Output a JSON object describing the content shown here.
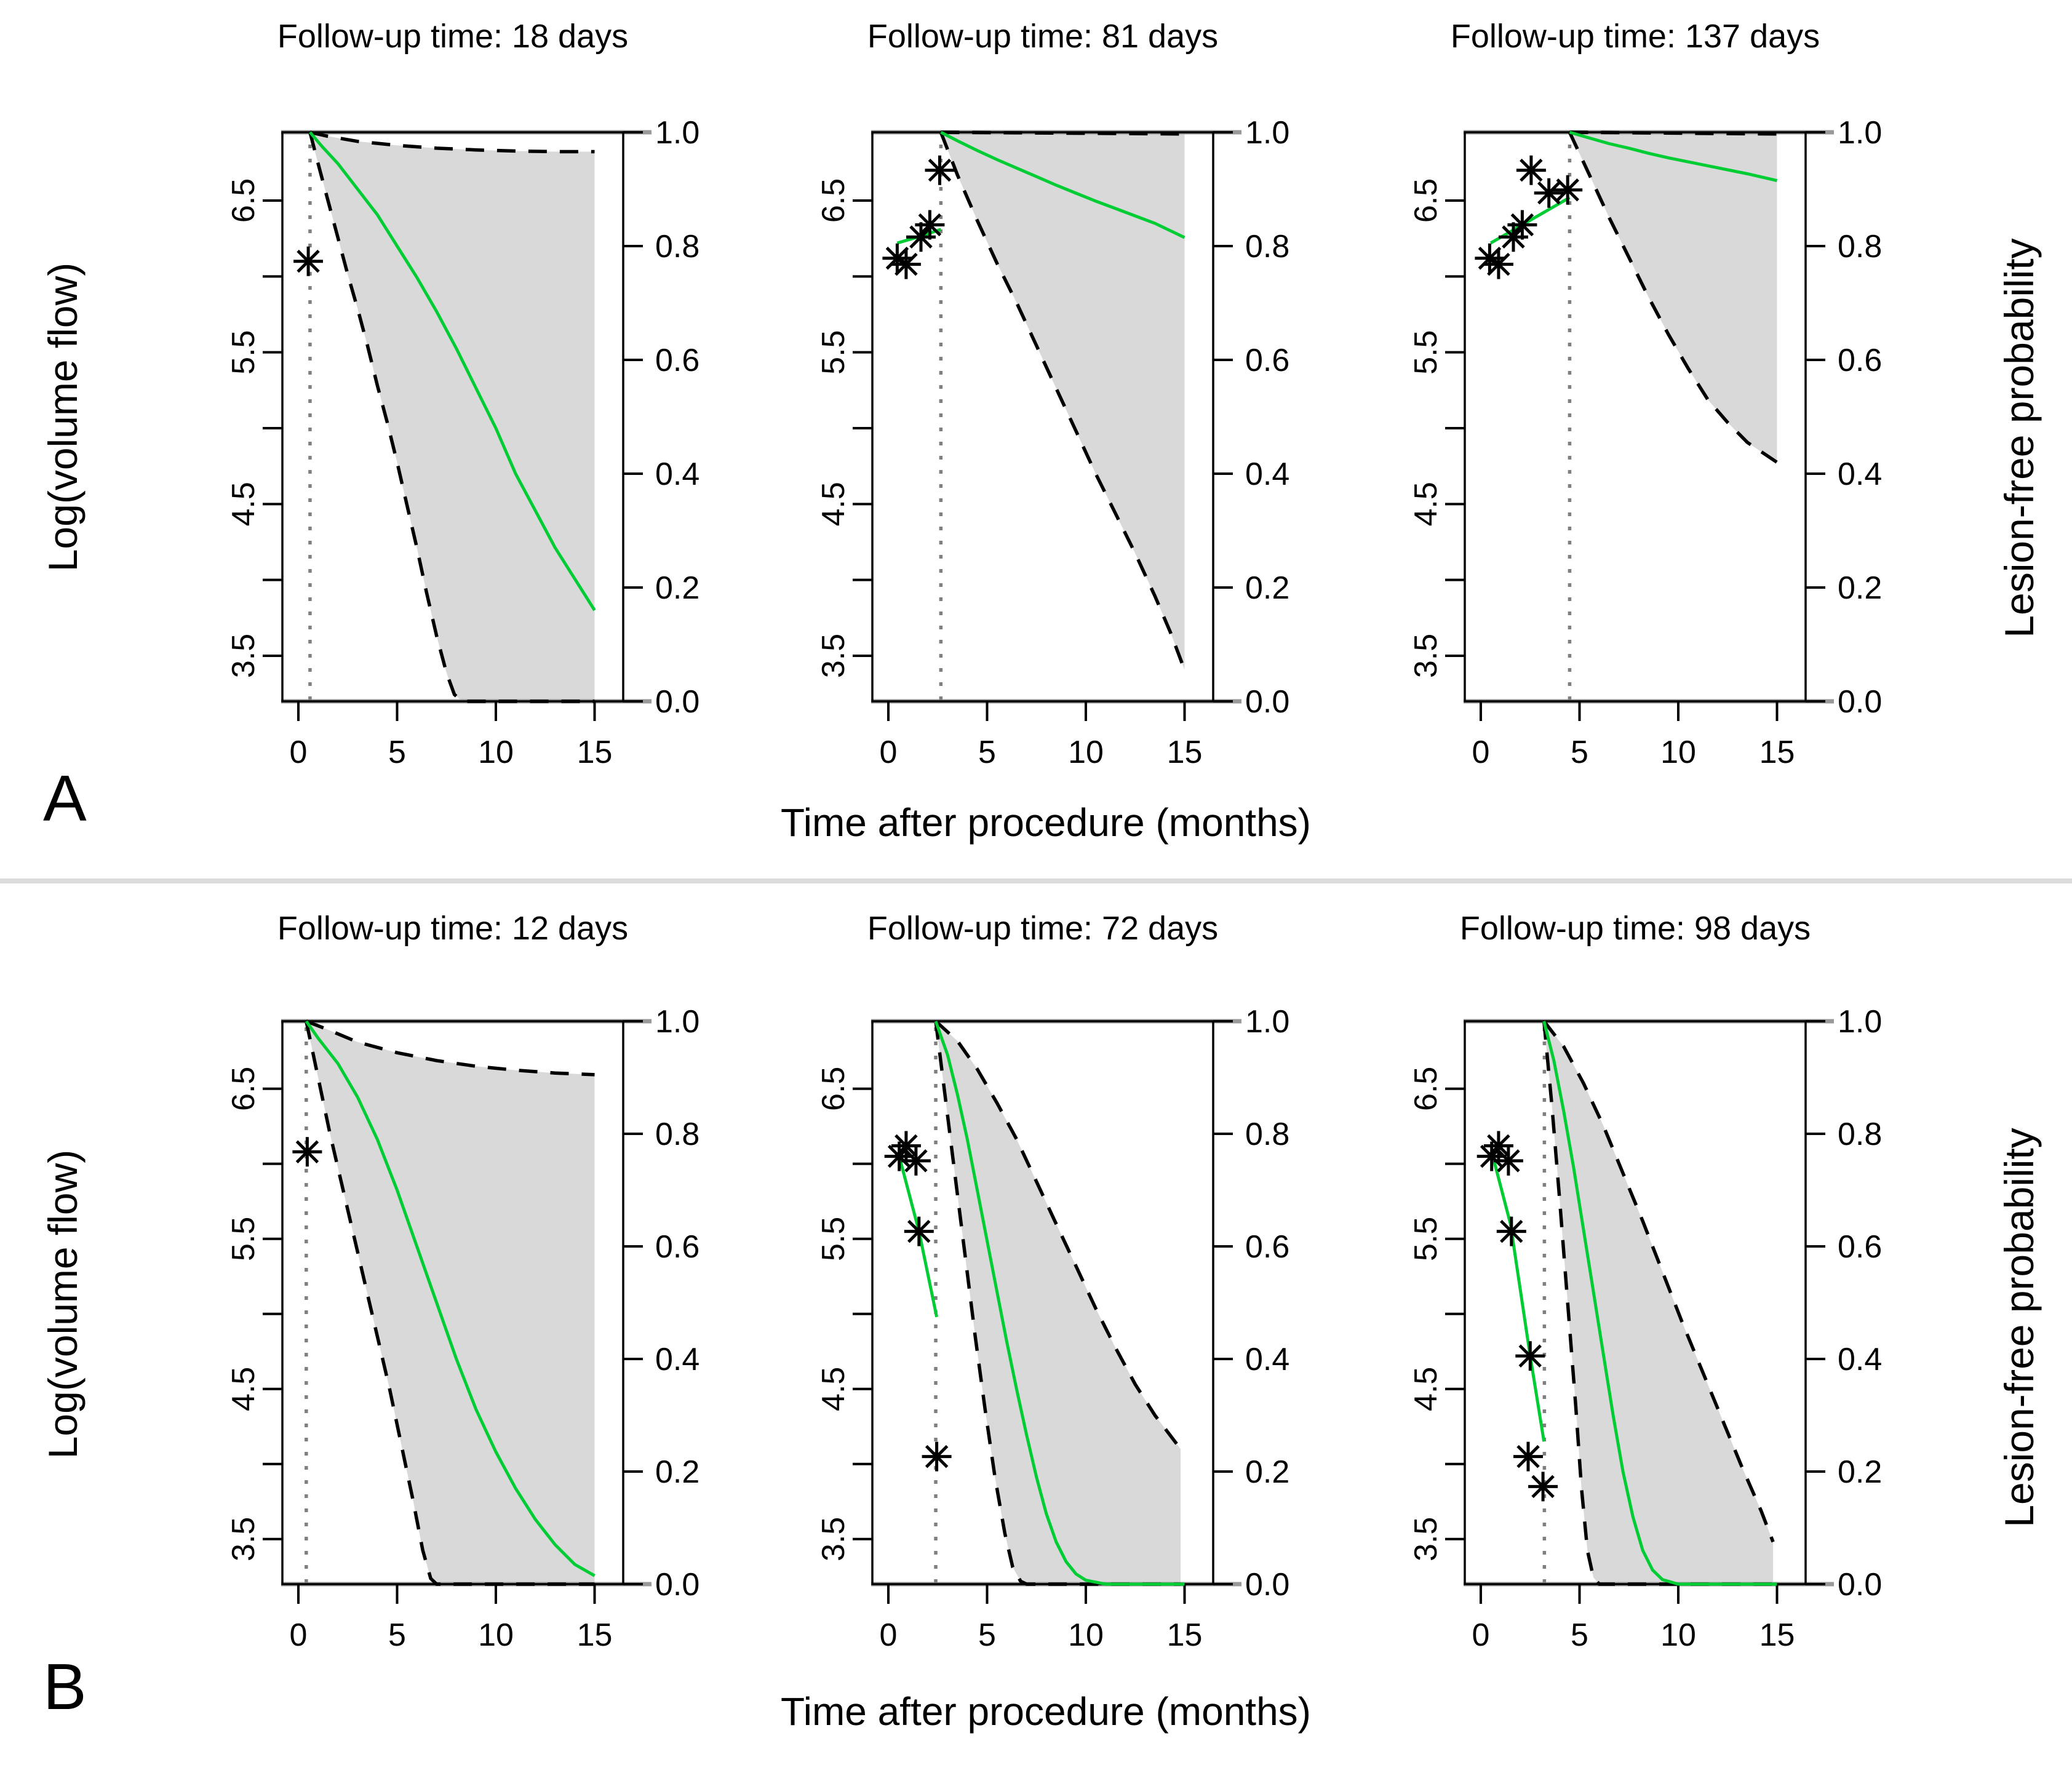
{
  "figure": {
    "panel_labels": {
      "A": "A",
      "B": "B"
    },
    "x_axis_label": "Time after procedure (months)",
    "left_axis_label": "Log(volume flow)",
    "right_axis_label": "Lesion-free probability",
    "x_ticks": [
      0,
      5,
      10,
      15
    ],
    "left_ticks": [
      3.5,
      4,
      4.5,
      5,
      5.5,
      6,
      6.5
    ],
    "left_tick_labels": [
      "3.5",
      "4.5",
      "5.5",
      "6.5"
    ],
    "right_ticks": [
      0.0,
      0.2,
      0.4,
      0.6,
      0.8,
      1.0
    ],
    "right_tick_labels": [
      "0.0",
      "0.2",
      "0.4",
      "0.6",
      "0.8",
      "1.0"
    ],
    "colors": {
      "green": "#00CC33",
      "band_fill": "#d9d9d9",
      "gray_edge": "#999999",
      "dotted_line": "#808080",
      "dashed_ci": "#000000",
      "axis": "#000000",
      "separator": "#dcdcdc"
    }
  },
  "chart_data": [
    {
      "id": "A1",
      "row": "A",
      "col": 0,
      "type": "line",
      "title": "Follow-up time: 18 days",
      "followup_days": 18,
      "followup_months": 0.59,
      "x_range_months": [
        0,
        15
      ],
      "left_axis_range_logvf": [
        3.2,
        6.95
      ],
      "right_axis_range_prob": [
        0.0,
        1.0
      ],
      "stars_logvf": [
        [
          0.5,
          6.1
        ]
      ],
      "fit_line_logvf": [],
      "survival": [
        [
          0.59,
          1
        ],
        [
          1.2,
          0.975
        ],
        [
          2,
          0.945
        ],
        [
          3,
          0.9
        ],
        [
          4,
          0.855
        ],
        [
          5,
          0.8
        ],
        [
          6,
          0.745
        ],
        [
          7,
          0.685
        ],
        [
          8,
          0.62
        ],
        [
          9,
          0.55
        ],
        [
          10,
          0.48
        ],
        [
          11,
          0.4
        ],
        [
          12,
          0.335
        ],
        [
          13,
          0.27
        ],
        [
          14,
          0.215
        ],
        [
          15,
          0.16
        ]
      ],
      "upper_ci": [
        [
          0.59,
          1
        ],
        [
          1.5,
          0.993
        ],
        [
          3,
          0.984
        ],
        [
          5,
          0.977
        ],
        [
          7,
          0.972
        ],
        [
          9,
          0.969
        ],
        [
          11,
          0.967
        ],
        [
          13,
          0.966
        ],
        [
          15,
          0.966
        ]
      ],
      "lower_ci": [
        [
          0.59,
          1
        ],
        [
          1,
          0.945
        ],
        [
          1.5,
          0.88
        ],
        [
          2,
          0.815
        ],
        [
          2.5,
          0.75
        ],
        [
          3,
          0.69
        ],
        [
          3.5,
          0.625
        ],
        [
          4,
          0.555
        ],
        [
          4.5,
          0.49
        ],
        [
          5,
          0.42
        ],
        [
          5.5,
          0.345
        ],
        [
          6,
          0.27
        ],
        [
          6.5,
          0.19
        ],
        [
          7,
          0.115
        ],
        [
          7.5,
          0.05
        ],
        [
          7.9,
          0.012
        ],
        [
          8.3,
          0
        ],
        [
          15,
          0
        ]
      ]
    },
    {
      "id": "A2",
      "row": "A",
      "col": 1,
      "type": "line",
      "title": "Follow-up time: 81 days",
      "followup_days": 81,
      "followup_months": 2.66,
      "x_range_months": [
        0,
        15
      ],
      "left_axis_range_logvf": [
        3.2,
        6.95
      ],
      "right_axis_range_prob": [
        0.0,
        1.0
      ],
      "stars_logvf": [
        [
          0.45,
          6.12
        ],
        [
          0.9,
          6.08
        ],
        [
          1.65,
          6.26
        ],
        [
          2.1,
          6.34
        ],
        [
          2.6,
          6.7
        ]
      ],
      "fit_line_logvf": [
        [
          0.45,
          6.22
        ],
        [
          1.5,
          6.26
        ],
        [
          2.66,
          6.31
        ]
      ],
      "survival": [
        [
          2.66,
          1
        ],
        [
          3.5,
          0.985
        ],
        [
          4.5,
          0.968
        ],
        [
          5.5,
          0.952
        ],
        [
          6.5,
          0.937
        ],
        [
          7.5,
          0.922
        ],
        [
          8.5,
          0.907
        ],
        [
          9.5,
          0.893
        ],
        [
          10.5,
          0.879
        ],
        [
          11.5,
          0.866
        ],
        [
          12.5,
          0.853
        ],
        [
          13.5,
          0.84
        ],
        [
          15,
          0.815
        ]
      ],
      "upper_ci": [
        [
          2.66,
          1
        ],
        [
          15,
          0.997
        ]
      ],
      "lower_ci": [
        [
          2.66,
          1
        ],
        [
          3.5,
          0.925
        ],
        [
          4.5,
          0.845
        ],
        [
          5.5,
          0.77
        ],
        [
          6.5,
          0.7
        ],
        [
          7.5,
          0.625
        ],
        [
          8.5,
          0.55
        ],
        [
          9.5,
          0.475
        ],
        [
          10.5,
          0.4
        ],
        [
          11.5,
          0.33
        ],
        [
          12.5,
          0.26
        ],
        [
          13.5,
          0.185
        ],
        [
          14.3,
          0.12
        ],
        [
          15,
          0.055
        ]
      ]
    },
    {
      "id": "A3",
      "row": "A",
      "col": 2,
      "type": "line",
      "title": "Follow-up time: 137 days",
      "followup_days": 137,
      "followup_months": 4.5,
      "x_range_months": [
        0,
        15
      ],
      "left_axis_range_logvf": [
        3.2,
        6.95
      ],
      "right_axis_range_prob": [
        0.0,
        1.0
      ],
      "stars_logvf": [
        [
          0.45,
          6.12
        ],
        [
          0.9,
          6.08
        ],
        [
          1.65,
          6.26
        ],
        [
          2.1,
          6.34
        ],
        [
          2.55,
          6.7
        ],
        [
          3.45,
          6.55
        ],
        [
          4.4,
          6.57
        ]
      ],
      "fit_line_logvf": [
        [
          0.5,
          6.22
        ],
        [
          2.5,
          6.37
        ],
        [
          4.5,
          6.52
        ]
      ],
      "survival": [
        [
          4.5,
          1
        ],
        [
          5.5,
          0.99
        ],
        [
          6.5,
          0.98
        ],
        [
          7.5,
          0.972
        ],
        [
          8.5,
          0.963
        ],
        [
          9.5,
          0.955
        ],
        [
          10.5,
          0.948
        ],
        [
          11.5,
          0.941
        ],
        [
          12.5,
          0.934
        ],
        [
          13.5,
          0.927
        ],
        [
          15,
          0.915
        ]
      ],
      "upper_ci": [
        [
          4.5,
          1
        ],
        [
          15,
          0.997
        ]
      ],
      "lower_ci": [
        [
          4.5,
          1
        ],
        [
          5.5,
          0.925
        ],
        [
          6.5,
          0.85
        ],
        [
          7.5,
          0.78
        ],
        [
          8.5,
          0.71
        ],
        [
          9.5,
          0.645
        ],
        [
          10.5,
          0.585
        ],
        [
          11.5,
          0.53
        ],
        [
          12.5,
          0.49
        ],
        [
          13.5,
          0.455
        ],
        [
          15,
          0.42
        ]
      ]
    },
    {
      "id": "B1",
      "row": "B",
      "col": 0,
      "type": "line",
      "title": "Follow-up time: 12 days",
      "followup_days": 12,
      "followup_months": 0.4,
      "x_range_months": [
        0,
        15
      ],
      "left_axis_range_logvf": [
        3.2,
        6.95
      ],
      "right_axis_range_prob": [
        0.0,
        1.0
      ],
      "stars_logvf": [
        [
          0.45,
          6.08
        ]
      ],
      "fit_line_logvf": [],
      "survival": [
        [
          0.4,
          1
        ],
        [
          1,
          0.97
        ],
        [
          2,
          0.925
        ],
        [
          3,
          0.865
        ],
        [
          4,
          0.79
        ],
        [
          5,
          0.7
        ],
        [
          6,
          0.6
        ],
        [
          7,
          0.5
        ],
        [
          8,
          0.4
        ],
        [
          9,
          0.31
        ],
        [
          10,
          0.235
        ],
        [
          11,
          0.17
        ],
        [
          12,
          0.115
        ],
        [
          13,
          0.07
        ],
        [
          14,
          0.035
        ],
        [
          15,
          0.015
        ]
      ],
      "upper_ci": [
        [
          0.4,
          1
        ],
        [
          1.5,
          0.985
        ],
        [
          3,
          0.963
        ],
        [
          5,
          0.944
        ],
        [
          7,
          0.93
        ],
        [
          9,
          0.92
        ],
        [
          11,
          0.913
        ],
        [
          13,
          0.908
        ],
        [
          15,
          0.905
        ]
      ],
      "lower_ci": [
        [
          0.4,
          1
        ],
        [
          1,
          0.9
        ],
        [
          1.6,
          0.8
        ],
        [
          2.2,
          0.71
        ],
        [
          2.8,
          0.62
        ],
        [
          3.4,
          0.53
        ],
        [
          4,
          0.44
        ],
        [
          4.6,
          0.35
        ],
        [
          5.2,
          0.25
        ],
        [
          5.8,
          0.15
        ],
        [
          6.3,
          0.06
        ],
        [
          6.7,
          0.01
        ],
        [
          7,
          0
        ],
        [
          15,
          0
        ]
      ]
    },
    {
      "id": "B2",
      "row": "B",
      "col": 1,
      "type": "line",
      "title": "Follow-up time: 72 days",
      "followup_days": 72,
      "followup_months": 2.4,
      "x_range_months": [
        0,
        15
      ],
      "left_axis_range_logvf": [
        3.2,
        6.95
      ],
      "right_axis_range_prob": [
        0.0,
        1.0
      ],
      "stars_logvf": [
        [
          0.55,
          6.05
        ],
        [
          0.9,
          6.12
        ],
        [
          1.4,
          6.02
        ],
        [
          1.55,
          5.55
        ],
        [
          2.45,
          4.05
        ]
      ],
      "fit_line_logvf": [
        [
          0.55,
          6.05
        ],
        [
          1.55,
          5.55
        ],
        [
          2.45,
          4.98
        ]
      ],
      "survival": [
        [
          2.4,
          1
        ],
        [
          3,
          0.94
        ],
        [
          3.5,
          0.87
        ],
        [
          4,
          0.79
        ],
        [
          4.5,
          0.7
        ],
        [
          5,
          0.61
        ],
        [
          5.5,
          0.52
        ],
        [
          6,
          0.43
        ],
        [
          6.5,
          0.345
        ],
        [
          7,
          0.265
        ],
        [
          7.5,
          0.19
        ],
        [
          8,
          0.125
        ],
        [
          8.5,
          0.075
        ],
        [
          9,
          0.04
        ],
        [
          9.5,
          0.018
        ],
        [
          10,
          0.007
        ],
        [
          11,
          0
        ],
        [
          15,
          0
        ]
      ],
      "upper_ci": [
        [
          2.4,
          1
        ],
        [
          3.5,
          0.965
        ],
        [
          4.5,
          0.915
        ],
        [
          5.5,
          0.855
        ],
        [
          6.5,
          0.79
        ],
        [
          7.5,
          0.715
        ],
        [
          8.5,
          0.64
        ],
        [
          9.5,
          0.565
        ],
        [
          10.5,
          0.49
        ],
        [
          11.5,
          0.42
        ],
        [
          12.5,
          0.355
        ],
        [
          13.5,
          0.3
        ],
        [
          14.8,
          0.24
        ]
      ],
      "lower_ci": [
        [
          2.4,
          1
        ],
        [
          2.9,
          0.86
        ],
        [
          3.4,
          0.72
        ],
        [
          3.9,
          0.58
        ],
        [
          4.4,
          0.44
        ],
        [
          4.9,
          0.31
        ],
        [
          5.4,
          0.19
        ],
        [
          5.9,
          0.09
        ],
        [
          6.3,
          0.03
        ],
        [
          6.7,
          0.005
        ],
        [
          7,
          0
        ],
        [
          14.8,
          0
        ]
      ]
    },
    {
      "id": "B3",
      "row": "B",
      "col": 2,
      "type": "line",
      "title": "Follow-up time: 98 days",
      "followup_days": 98,
      "followup_months": 3.22,
      "x_range_months": [
        0,
        15
      ],
      "left_axis_range_logvf": [
        3.2,
        6.95
      ],
      "right_axis_range_prob": [
        0.0,
        1.0
      ],
      "stars_logvf": [
        [
          0.55,
          6.05
        ],
        [
          0.9,
          6.12
        ],
        [
          1.4,
          6.02
        ],
        [
          1.55,
          5.55
        ],
        [
          2.5,
          4.72
        ],
        [
          2.4,
          4.05
        ],
        [
          3.15,
          3.85
        ]
      ],
      "fit_line_logvf": [
        [
          0.55,
          6.08
        ],
        [
          1.5,
          5.6
        ],
        [
          2.5,
          4.72
        ],
        [
          3.2,
          4.15
        ]
      ],
      "survival": [
        [
          3.2,
          1
        ],
        [
          3.7,
          0.93
        ],
        [
          4.2,
          0.84
        ],
        [
          4.7,
          0.74
        ],
        [
          5.2,
          0.63
        ],
        [
          5.7,
          0.52
        ],
        [
          6.2,
          0.41
        ],
        [
          6.7,
          0.3
        ],
        [
          7.2,
          0.2
        ],
        [
          7.7,
          0.12
        ],
        [
          8.2,
          0.06
        ],
        [
          8.7,
          0.025
        ],
        [
          9.2,
          0.008
        ],
        [
          10,
          0
        ],
        [
          15,
          0
        ]
      ],
      "upper_ci": [
        [
          3.2,
          1
        ],
        [
          4.2,
          0.955
        ],
        [
          5.2,
          0.89
        ],
        [
          6.2,
          0.815
        ],
        [
          7.2,
          0.73
        ],
        [
          8.2,
          0.645
        ],
        [
          9.2,
          0.555
        ],
        [
          10.2,
          0.465
        ],
        [
          11.2,
          0.38
        ],
        [
          12.2,
          0.295
        ],
        [
          13.2,
          0.21
        ],
        [
          14.2,
          0.13
        ],
        [
          14.8,
          0.075
        ]
      ],
      "lower_ci": [
        [
          3.2,
          1
        ],
        [
          3.6,
          0.85
        ],
        [
          4,
          0.68
        ],
        [
          4.4,
          0.5
        ],
        [
          4.8,
          0.32
        ],
        [
          5.1,
          0.17
        ],
        [
          5.4,
          0.06
        ],
        [
          5.7,
          0.012
        ],
        [
          6,
          0
        ],
        [
          14.8,
          0
        ]
      ]
    }
  ]
}
